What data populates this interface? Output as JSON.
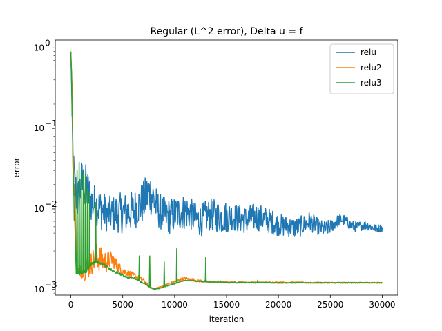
{
  "chart_data": {
    "type": "line",
    "title": "Regular (L^2 error), Delta u = f",
    "xlabel": "iteration",
    "ylabel": "error",
    "yscale": "log",
    "xlim": [
      -1500,
      31500
    ],
    "ylim": [
      0.00085,
      1.25
    ],
    "xticks": [
      0,
      5000,
      10000,
      15000,
      20000,
      25000,
      30000
    ],
    "yticks": [
      {
        "value": 0.001,
        "base": "10",
        "exp": "−3"
      },
      {
        "value": 0.01,
        "base": "10",
        "exp": "−2"
      },
      {
        "value": 0.1,
        "base": "10",
        "exp": "−1"
      },
      {
        "value": 1,
        "base": "10",
        "exp": "0"
      }
    ],
    "legend": {
      "position": "top-right"
    },
    "grid": false,
    "series": [
      {
        "name": "relu",
        "color": "#1f77b4",
        "x": [
          0,
          100,
          200,
          400,
          700,
          1000,
          1500,
          1800,
          2000,
          2500,
          3000,
          3500,
          4000,
          4500,
          5000,
          5500,
          6000,
          6500,
          7000,
          7500,
          7800,
          8200,
          8500,
          9000,
          9500,
          10000,
          10500,
          11000,
          11500,
          12000,
          12500,
          13000,
          13500,
          14000,
          14500,
          15000,
          15500,
          16000,
          16500,
          17000,
          17500,
          18000,
          18500,
          19000,
          19500,
          20000,
          20500,
          21000,
          21500,
          22000,
          22500,
          23000,
          23500,
          24000,
          24500,
          25000,
          25500,
          26000,
          26500,
          27000,
          27500,
          28000,
          28500,
          29000,
          29500,
          30000
        ],
        "y": [
          0.9,
          0.12,
          0.03,
          0.018,
          0.012,
          0.02,
          0.018,
          0.014,
          0.012,
          0.011,
          0.0095,
          0.0088,
          0.0085,
          0.009,
          0.0088,
          0.0092,
          0.0094,
          0.011,
          0.012,
          0.016,
          0.015,
          0.011,
          0.0095,
          0.0085,
          0.008,
          0.0085,
          0.009,
          0.0092,
          0.0088,
          0.0075,
          0.0072,
          0.008,
          0.0085,
          0.0082,
          0.0078,
          0.008,
          0.0082,
          0.0076,
          0.0075,
          0.0072,
          0.0078,
          0.008,
          0.0075,
          0.0072,
          0.0068,
          0.0064,
          0.0062,
          0.006,
          0.0058,
          0.006,
          0.0064,
          0.007,
          0.0064,
          0.0058,
          0.0056,
          0.006,
          0.0068,
          0.0074,
          0.0071,
          0.0062,
          0.006,
          0.0062,
          0.0063,
          0.0059,
          0.0057,
          0.0058
        ],
        "spread": [
          0.0,
          0.5,
          0.7,
          0.6,
          0.6,
          0.65,
          0.6,
          0.55,
          0.55,
          0.5,
          0.5,
          0.45,
          0.45,
          0.5,
          0.5,
          0.5,
          0.5,
          0.5,
          0.55,
          0.55,
          0.55,
          0.5,
          0.45,
          0.45,
          0.45,
          0.45,
          0.45,
          0.45,
          0.4,
          0.4,
          0.4,
          0.4,
          0.4,
          0.4,
          0.4,
          0.4,
          0.35,
          0.35,
          0.35,
          0.35,
          0.35,
          0.35,
          0.32,
          0.32,
          0.3,
          0.28,
          0.28,
          0.26,
          0.26,
          0.25,
          0.25,
          0.25,
          0.22,
          0.2,
          0.2,
          0.18,
          0.16,
          0.15,
          0.14,
          0.14,
          0.12,
          0.12,
          0.12,
          0.1,
          0.1,
          0.1
        ]
      },
      {
        "name": "relu2",
        "color": "#ff7f0e",
        "x": [
          0,
          100,
          200,
          300,
          500,
          700,
          1000,
          1300,
          1600,
          2000,
          2500,
          3000,
          3500,
          4000,
          4500,
          5000,
          5500,
          6000,
          6500,
          7000,
          7500,
          8000,
          8500,
          9000,
          9500,
          10000,
          10500,
          11000,
          12000,
          13000,
          14000,
          15000,
          17000,
          20000,
          25000,
          30000
        ],
        "y": [
          0.9,
          0.3,
          0.05,
          0.02,
          0.002,
          0.0017,
          0.0017,
          0.0016,
          0.0019,
          0.0021,
          0.0026,
          0.0023,
          0.0022,
          0.0024,
          0.0019,
          0.0017,
          0.0016,
          0.0015,
          0.0014,
          0.0013,
          0.0011,
          0.00102,
          0.00106,
          0.00112,
          0.00118,
          0.00125,
          0.00132,
          0.00136,
          0.0013,
          0.00125,
          0.00124,
          0.00123,
          0.00122,
          0.00122,
          0.00121,
          0.00121
        ],
        "spread": [
          0.0,
          0.3,
          0.5,
          0.5,
          0.2,
          0.15,
          0.15,
          0.2,
          0.3,
          0.3,
          0.35,
          0.3,
          0.25,
          0.2,
          0.15,
          0.1,
          0.08,
          0.07,
          0.06,
          0.05,
          0.03,
          0.02,
          0.02,
          0.02,
          0.02,
          0.03,
          0.04,
          0.04,
          0.04,
          0.03,
          0.03,
          0.03,
          0.02,
          0.02,
          0.015,
          0.015
        ]
      },
      {
        "name": "relu3",
        "color": "#2ca02c",
        "x": [
          0,
          100,
          200,
          300,
          500,
          700,
          1000,
          1500,
          2000,
          2500,
          3000,
          3500,
          4000,
          4500,
          5000,
          5500,
          6000,
          6500,
          7000,
          7500,
          8000,
          8500,
          9000,
          9500,
          10000,
          10500,
          11000,
          12000,
          13000,
          14000,
          15000,
          17000,
          20000,
          25000,
          30000
        ],
        "y": [
          0.9,
          0.2,
          0.04,
          0.01,
          0.0017,
          0.0016,
          0.0016,
          0.0017,
          0.0021,
          0.0022,
          0.0021,
          0.0019,
          0.0017,
          0.0016,
          0.0015,
          0.0014,
          0.0014,
          0.0013,
          0.0012,
          0.00108,
          0.00101,
          0.00103,
          0.00108,
          0.00113,
          0.00118,
          0.00124,
          0.0013,
          0.00127,
          0.00124,
          0.00123,
          0.00122,
          0.00122,
          0.00121,
          0.00121,
          0.00121
        ],
        "spread": [
          0.0,
          0.4,
          0.5,
          0.4,
          0.1,
          0.05,
          0.05,
          0.05,
          0.04,
          0.03,
          0.03,
          0.03,
          0.03,
          0.03,
          0.02,
          0.02,
          0.02,
          0.02,
          0.02,
          0.02,
          0.01,
          0.01,
          0.01,
          0.01,
          0.01,
          0.01,
          0.01,
          0.01,
          0.01,
          0.01,
          0.01,
          0.01,
          0.01,
          0.01,
          0.01
        ],
        "spikes": [
          {
            "x": 300,
            "y": 0.04
          },
          {
            "x": 600,
            "y": 0.03
          },
          {
            "x": 800,
            "y": 0.038
          },
          {
            "x": 1000,
            "y": 0.03
          },
          {
            "x": 1200,
            "y": 0.027
          },
          {
            "x": 1400,
            "y": 0.027
          },
          {
            "x": 1600,
            "y": 0.018
          },
          {
            "x": 1800,
            "y": 0.016
          },
          {
            "x": 2400,
            "y": 0.012
          },
          {
            "x": 3500,
            "y": 0.004
          },
          {
            "x": 4100,
            "y": 0.0025
          },
          {
            "x": 4500,
            "y": 0.0026
          },
          {
            "x": 5500,
            "y": 0.0026
          },
          {
            "x": 6600,
            "y": 0.0026
          },
          {
            "x": 7600,
            "y": 0.0026
          },
          {
            "x": 9000,
            "y": 0.0022
          },
          {
            "x": 10200,
            "y": 0.0032
          },
          {
            "x": 10900,
            "y": 0.0025
          },
          {
            "x": 13000,
            "y": 0.0025
          },
          {
            "x": 18000,
            "y": 0.0013
          }
        ]
      }
    ]
  }
}
